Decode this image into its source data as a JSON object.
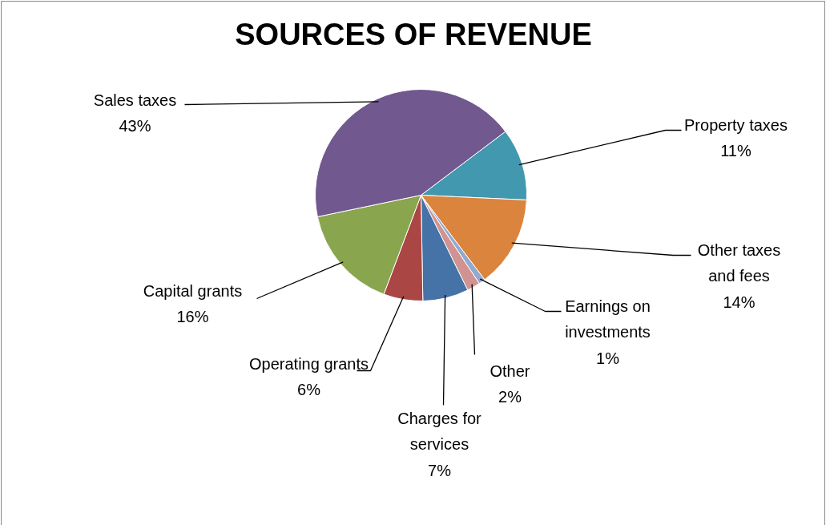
{
  "chart_data": {
    "type": "pie",
    "title": "SOURCES OF REVENUE",
    "categories": [
      "Property taxes",
      "Other taxes and fees",
      "Earnings on investments",
      "Other",
      "Charges for services",
      "Operating grants",
      "Capital grants",
      "Sales taxes"
    ],
    "values": [
      11,
      14,
      1,
      2,
      7,
      6,
      16,
      43
    ],
    "colors": [
      "#4198af",
      "#db843d",
      "#93a9cf",
      "#d19392",
      "#4572a7",
      "#aa4643",
      "#89a54e",
      "#71588f"
    ],
    "value_labels": [
      "11%",
      "14%",
      "1%",
      "2%",
      "7%",
      "6%",
      "16%",
      "43%"
    ]
  }
}
